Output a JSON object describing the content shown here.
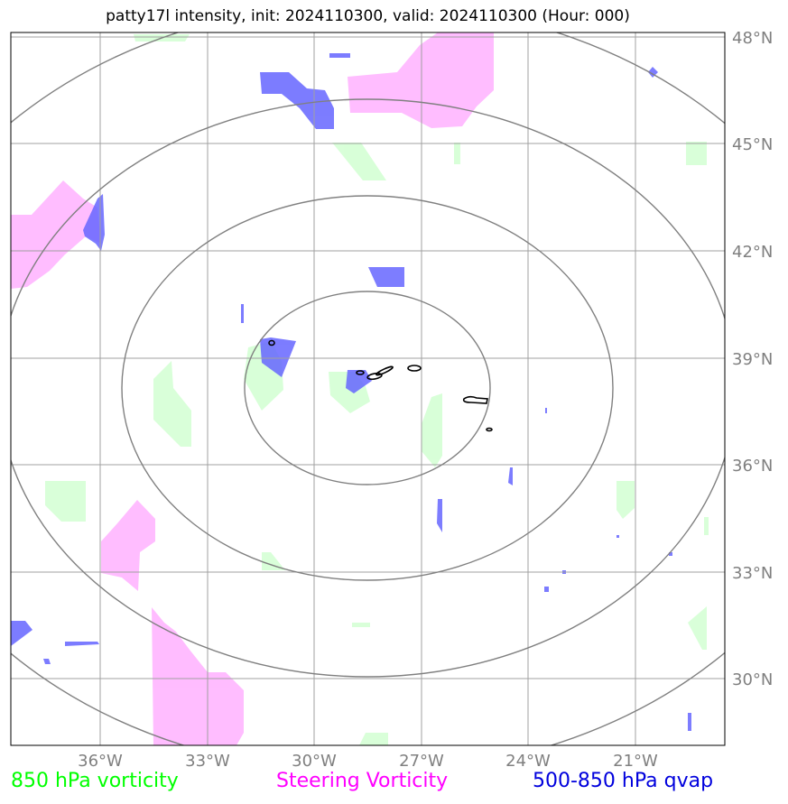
{
  "title": "patty17l intensity, init: 2024110300, valid: 2024110300 (Hour: 000)",
  "map": {
    "lat_labels": [
      "48°N",
      "45°N",
      "42°N",
      "39°N",
      "36°N",
      "33°N",
      "30°N"
    ],
    "lon_labels": [
      "36°W",
      "33°W",
      "30°W",
      "27°W",
      "24°W",
      "21°W"
    ],
    "gridline_color": "#a0a0a0",
    "range_ring_color": "#808080",
    "layers": {
      "vorticity_850_color": "#ccffcc",
      "steering_vorticity_color": "#ff99ff",
      "qvap_color": "#6666ff",
      "intensity_contour_color": "#000000"
    }
  },
  "legend": {
    "vorticity_850": {
      "label": "850 hPa vorticity",
      "color": "#00ff00"
    },
    "steering_vorticity": {
      "label": "Steering Vorticity",
      "color": "#ff00ff"
    },
    "qvap": {
      "label": "500-850 hPa qvap",
      "color": "#0000dd"
    }
  }
}
